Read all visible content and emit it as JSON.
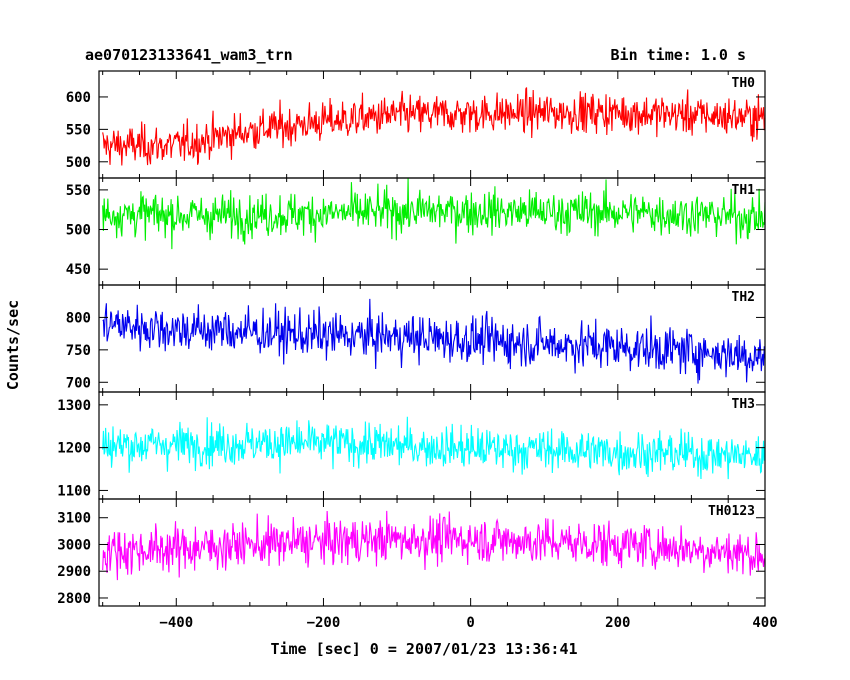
{
  "header": {
    "left": "ae070123133641_wam3_trn",
    "right": "Bin time: 1.0 s"
  },
  "chart_data": {
    "type": "line",
    "xlabel": "Time [sec] 0 = 2007/01/23 13:36:41",
    "ylabel": "Counts/sec",
    "xlim": [
      -505,
      400
    ],
    "xticks": [
      -400,
      -200,
      0,
      200,
      400
    ],
    "xtick_labels": [
      "−400",
      "−200",
      "0",
      "200",
      "400"
    ],
    "bin_time_s": 1.0,
    "panels": [
      {
        "name": "TH0",
        "color": "#ff0000",
        "ylim": [
          475,
          640
        ],
        "yticks": [
          500,
          550,
          600
        ],
        "trend": [
          [
            -500,
            525
          ],
          [
            -400,
            525
          ],
          [
            -300,
            548
          ],
          [
            -200,
            562
          ],
          [
            -100,
            572
          ],
          [
            0,
            574
          ],
          [
            100,
            576
          ],
          [
            200,
            576
          ],
          [
            300,
            572
          ],
          [
            400,
            568
          ]
        ],
        "noise_amplitude": 34
      },
      {
        "name": "TH1",
        "color": "#00ee00",
        "ylim": [
          430,
          565
        ],
        "yticks": [
          450,
          500,
          550
        ],
        "trend": [
          [
            -500,
            520
          ],
          [
            -400,
            518
          ],
          [
            -300,
            518
          ],
          [
            -200,
            520
          ],
          [
            -100,
            523
          ],
          [
            0,
            523
          ],
          [
            100,
            522
          ],
          [
            200,
            522
          ],
          [
            300,
            519
          ],
          [
            400,
            515
          ]
        ],
        "noise_amplitude": 30
      },
      {
        "name": "TH2",
        "color": "#0000ee",
        "ylim": [
          685,
          850
        ],
        "yticks": [
          700,
          750,
          800
        ],
        "trend": [
          [
            -500,
            790
          ],
          [
            -400,
            782
          ],
          [
            -300,
            778
          ],
          [
            -200,
            772
          ],
          [
            -100,
            770
          ],
          [
            0,
            765
          ],
          [
            100,
            760
          ],
          [
            200,
            755
          ],
          [
            300,
            748
          ],
          [
            400,
            740
          ]
        ],
        "noise_amplitude": 40
      },
      {
        "name": "TH3",
        "color": "#00ffff",
        "ylim": [
          1080,
          1330
        ],
        "yticks": [
          1100,
          1200,
          1300
        ],
        "trend": [
          [
            -500,
            1205
          ],
          [
            -400,
            1208
          ],
          [
            -300,
            1210
          ],
          [
            -200,
            1210
          ],
          [
            -100,
            1205
          ],
          [
            0,
            1198
          ],
          [
            100,
            1195
          ],
          [
            200,
            1190
          ],
          [
            300,
            1185
          ],
          [
            400,
            1180
          ]
        ],
        "noise_amplitude": 55
      },
      {
        "name": "TH0123",
        "color": "#ff00ff",
        "ylim": [
          2770,
          3170
        ],
        "yticks": [
          2800,
          2900,
          3000,
          3100
        ],
        "trend": [
          [
            -500,
            2975
          ],
          [
            -400,
            2985
          ],
          [
            -300,
            3000
          ],
          [
            -200,
            3010
          ],
          [
            -100,
            3020
          ],
          [
            0,
            3020
          ],
          [
            100,
            3010
          ],
          [
            200,
            3000
          ],
          [
            300,
            2985
          ],
          [
            400,
            2960
          ]
        ],
        "noise_amplitude": 95
      }
    ]
  }
}
